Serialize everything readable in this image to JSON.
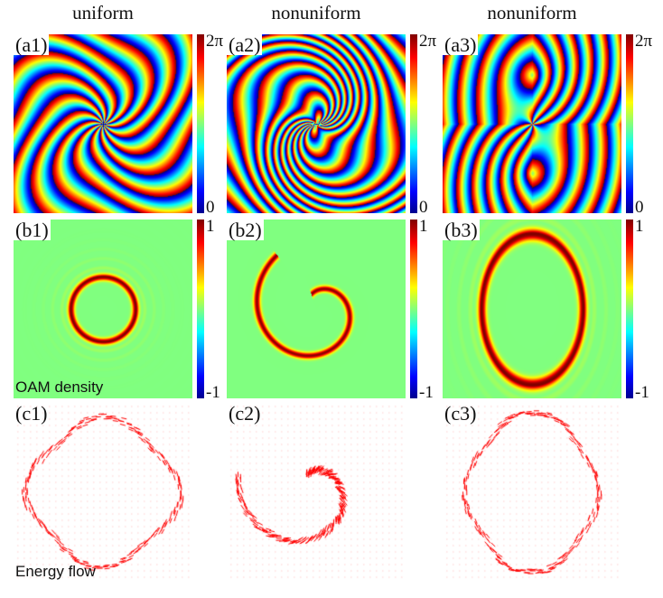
{
  "columns": [
    {
      "title": "uniform",
      "labels": [
        "(a1)",
        "(b1)",
        "(c1)"
      ]
    },
    {
      "title": "nonuniform",
      "labels": [
        "(a2)",
        "(b2)",
        "(c2)"
      ]
    },
    {
      "title": "nonuniform",
      "labels": [
        "(a3)",
        "(b3)",
        "(c3)"
      ]
    }
  ],
  "phase_colorbar": {
    "max": "2π",
    "min": "0"
  },
  "oam_colorbar": {
    "max": "1",
    "min": "-1"
  },
  "row_notes": {
    "oam": "OAM density",
    "flow": "Energy flow"
  },
  "colormap": "jet",
  "colors": {
    "background": "#80ff80",
    "flow_arrows": "#ff0000"
  }
}
